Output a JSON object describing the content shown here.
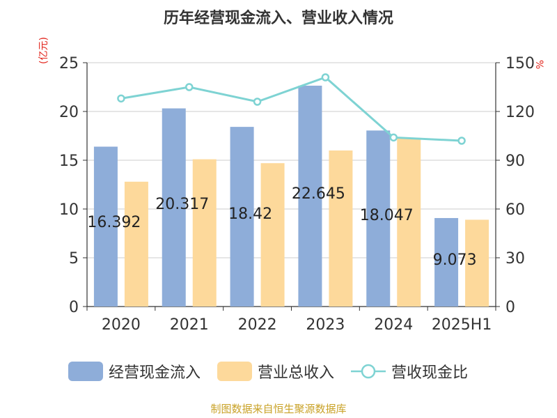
{
  "title": "历年经营现金流入、营业收入情况",
  "left_unit": "(亿元)",
  "right_unit": "%",
  "source": "制图数据来自恒生聚源数据库",
  "colors": {
    "cash_inflow": "#8eadd9",
    "revenue": "#fdd99b",
    "ratio": "#7ed3d3",
    "unit_label": "#e2231a",
    "source": "#c9a227"
  },
  "legend": [
    {
      "label": "经营现金流入",
      "type": "bar",
      "color": "#8eadd9"
    },
    {
      "label": "营业总收入",
      "type": "bar",
      "color": "#fdd99b"
    },
    {
      "label": "营收现金比",
      "type": "line",
      "color": "#7ed3d3"
    }
  ],
  "chart_data": {
    "type": "bar",
    "title": "历年经营现金流入、营业收入情况",
    "categories": [
      "2020",
      "2021",
      "2022",
      "2023",
      "2024",
      "2025H1"
    ],
    "series": [
      {
        "name": "经营现金流入",
        "type": "bar",
        "axis": "left",
        "values": [
          16.392,
          20.317,
          18.42,
          22.645,
          18.047,
          9.073
        ],
        "data_labels": [
          "16.392",
          "20.317",
          "18.42",
          "22.645",
          "18.047",
          "9.073"
        ]
      },
      {
        "name": "营业总收入",
        "type": "bar",
        "axis": "left",
        "values": [
          12.8,
          15.1,
          14.7,
          16.0,
          17.3,
          8.9
        ]
      },
      {
        "name": "营收现金比",
        "type": "line",
        "axis": "right",
        "values": [
          128,
          135,
          126,
          141,
          104,
          102
        ]
      }
    ],
    "y_left": {
      "label": "(亿元)",
      "ylim": [
        0,
        25
      ],
      "ticks": [
        0,
        5,
        10,
        15,
        20,
        25
      ]
    },
    "y_right": {
      "label": "%",
      "ylim": [
        0,
        150
      ],
      "ticks": [
        0,
        30,
        60,
        90,
        120,
        150
      ]
    },
    "grid": true,
    "legend_position": "bottom"
  }
}
